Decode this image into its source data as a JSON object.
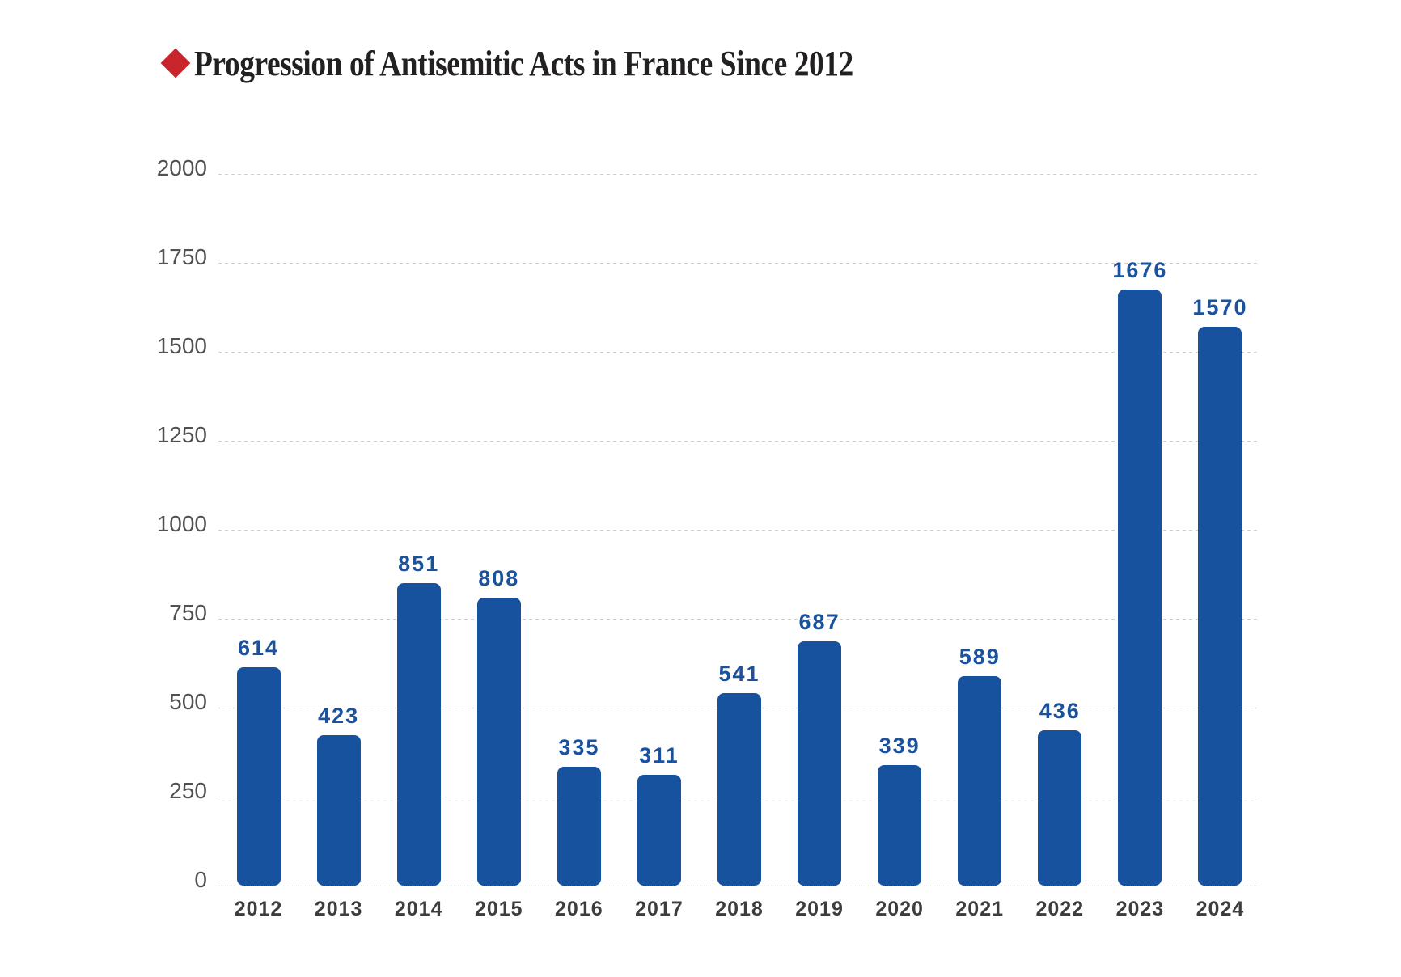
{
  "title": {
    "text": "Progression of Antisemitic Acts in France Since 2012",
    "bullet_icon": "diamond-icon"
  },
  "colors": {
    "bar": "#17529e",
    "value_label": "#1a529e",
    "diamond_red": "#c9252c",
    "title_text": "#232021",
    "y_tick_label": "#515151",
    "x_tick_label": "#3d3d3d",
    "gridline": "#cfcfcf",
    "baseline": "#a8a8a8",
    "background": "#ffffff"
  },
  "chart_data": {
    "type": "bar",
    "title": "Progression of Antisemitic Acts in France Since 2012",
    "categories": [
      "2012",
      "2013",
      "2014",
      "2015",
      "2016",
      "2017",
      "2018",
      "2019",
      "2020",
      "2021",
      "2022",
      "2023",
      "2024"
    ],
    "values": [
      614,
      423,
      851,
      808,
      335,
      311,
      541,
      687,
      339,
      589,
      436,
      1676,
      1570
    ],
    "value_labels_shown": true,
    "xlabel": "",
    "ylabel": "",
    "ylim": [
      0,
      2000
    ],
    "yticks": [
      0,
      250,
      500,
      750,
      1000,
      1250,
      1500,
      1750,
      2000
    ],
    "grid": true,
    "grid_style": "dashed",
    "legend": "none"
  }
}
